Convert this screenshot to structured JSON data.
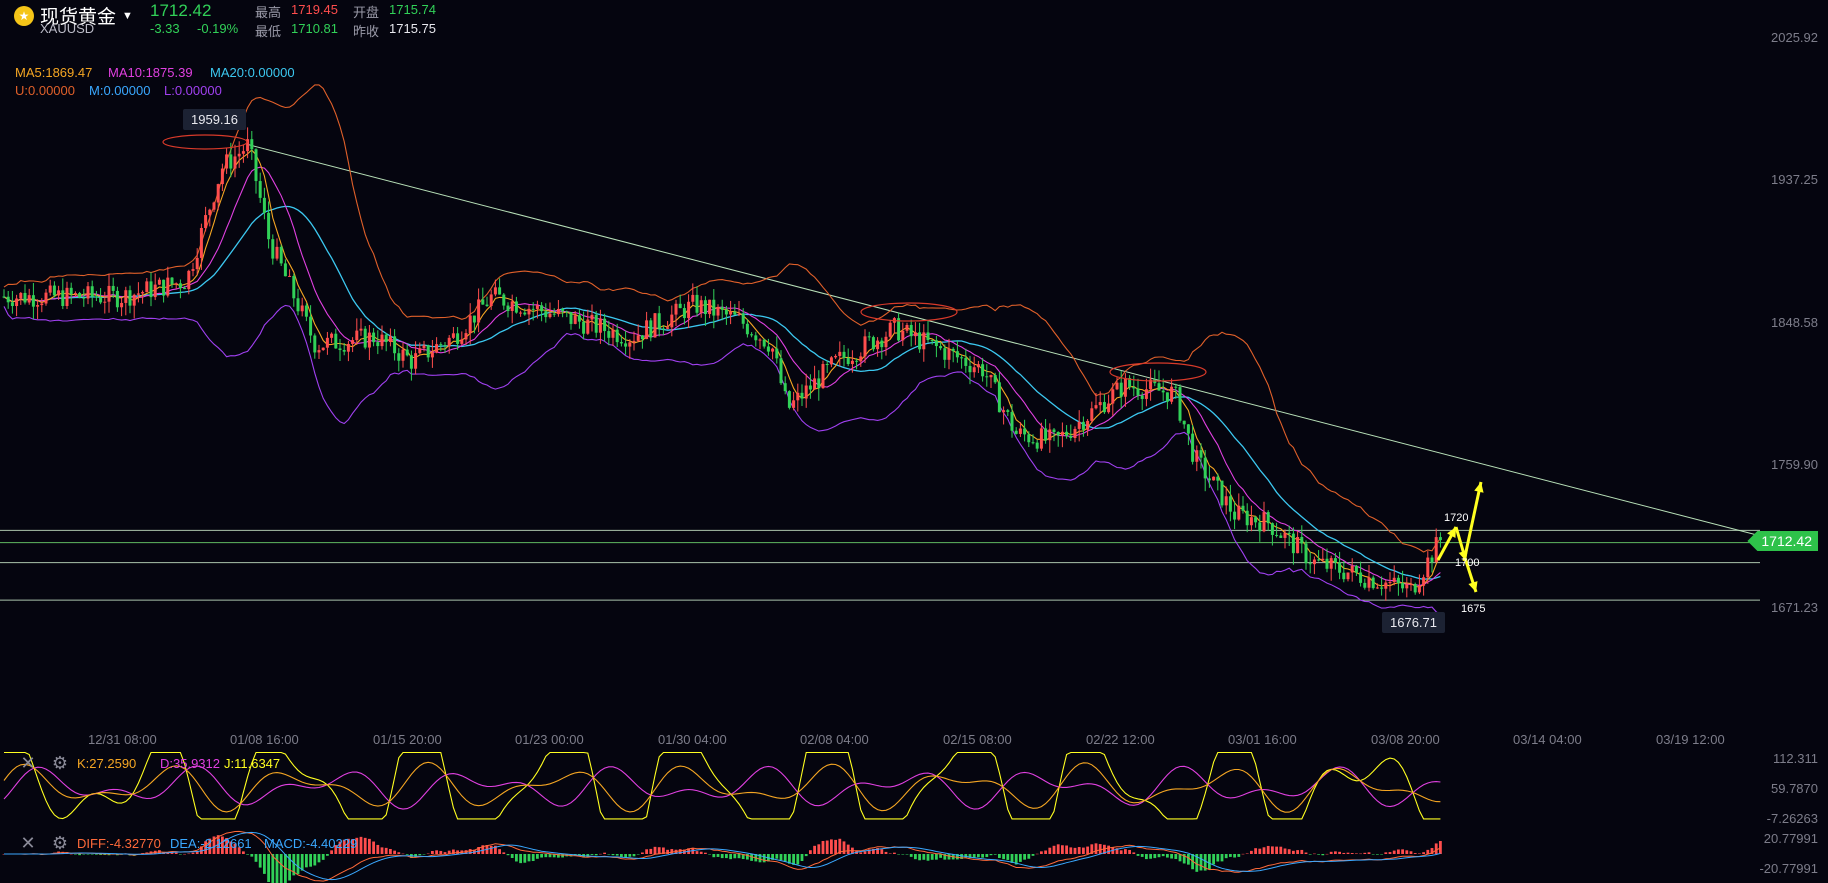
{
  "header": {
    "symbol_name": "现货黄金",
    "symbol_code": "XAUUSD",
    "last_price": "1712.42",
    "change": "-3.33",
    "change_pct": "-0.19%",
    "high_label": "最高",
    "high_value": "1719.45",
    "open_label": "开盘",
    "open_value": "1715.74",
    "low_label": "最低",
    "low_value": "1710.81",
    "prev_label": "昨收",
    "prev_value": "1715.75"
  },
  "indicators": {
    "ma5": "MA5:1869.47",
    "ma10": "MA10:1875.39",
    "ma20": "MA20:0.00000",
    "u": "U:0.00000",
    "m": "M:0.00000",
    "l": "L:0.00000"
  },
  "price_axis": {
    "ticks": [
      "2025.92",
      "1937.25",
      "1848.58",
      "1759.90",
      "1671.23"
    ],
    "current_tag": "1712.42"
  },
  "annotations": {
    "high_tag": "1959.16",
    "low_tag": "1676.71",
    "level_1720": "1720",
    "level_1700": "1700",
    "level_1675": "1675"
  },
  "time_axis": [
    "12/31 08:00",
    "01/08 16:00",
    "01/15 20:00",
    "01/23 00:00",
    "01/30 04:00",
    "02/08 04:00",
    "02/15 08:00",
    "02/22 12:00",
    "03/01 16:00",
    "03/08 20:00",
    "03/14 04:00",
    "03/19 12:00"
  ],
  "kdj": {
    "k": "K:27.2590",
    "d": "D:35.9312",
    "j": "J:11.6347",
    "ticks": [
      "112.311",
      "59.7870",
      "-7.26263"
    ]
  },
  "macd": {
    "diff": "DIFF:-4.32770",
    "dea": "DEA:-2.12661",
    "macd": "MACD:-4.40229",
    "ticks": [
      "20.77991",
      "-20.77991"
    ]
  },
  "colors": {
    "up": "#ff4d4d",
    "down": "#31d158",
    "ma5": "#f5a623",
    "ma10": "#e040e0",
    "ma20": "#3cc8f0",
    "boll_u": "#e0602a",
    "boll_m": "#3aa8ff",
    "boll_l": "#a040f0",
    "arrow": "#ffff20",
    "trendline": "#b8e0b8"
  },
  "chart_data": {
    "type": "candlestick",
    "title": "现货黄金 XAUUSD",
    "ylim": [
      1671.23,
      2025.92
    ],
    "x_categories": [
      "12/31 08:00",
      "01/08 16:00",
      "01/15 20:00",
      "01/23 00:00",
      "01/30 04:00",
      "02/08 04:00",
      "02/15 08:00",
      "02/22 12:00",
      "03/01 16:00",
      "03/08 20:00",
      "03/14 04:00",
      "03/19 12:00"
    ],
    "close_trend": [
      [
        "12/31 08:00",
        1865
      ],
      [
        "01/04 00:00",
        1875
      ],
      [
        "01/06 00:00",
        1945
      ],
      [
        "01/07 12:00",
        1959
      ],
      [
        "01/08 16:00",
        1900
      ],
      [
        "01/11 00:00",
        1835
      ],
      [
        "01/14 00:00",
        1840
      ],
      [
        "01/15 20:00",
        1825
      ],
      [
        "01/18 00:00",
        1840
      ],
      [
        "01/20 00:00",
        1865
      ],
      [
        "01/23 00:00",
        1855
      ],
      [
        "01/27 00:00",
        1840
      ],
      [
        "01/30 04:00",
        1860
      ],
      [
        "02/02 00:00",
        1850
      ],
      [
        "02/04 00:00",
        1835
      ],
      [
        "02/05 00:00",
        1795
      ],
      [
        "02/08 04:00",
        1825
      ],
      [
        "02/11 00:00",
        1845
      ],
      [
        "02/15 08:00",
        1820
      ],
      [
        "02/17 00:00",
        1780
      ],
      [
        "02/19 00:00",
        1775
      ],
      [
        "02/22 12:00",
        1810
      ],
      [
        "02/25 00:00",
        1805
      ],
      [
        "02/26 00:00",
        1765
      ],
      [
        "02/28 00:00",
        1730
      ],
      [
        "03/01 16:00",
        1725
      ],
      [
        "03/04 00:00",
        1700
      ],
      [
        "03/08 20:00",
        1683
      ],
      [
        "03/10 00:00",
        1715
      ]
    ],
    "horizontal_levels": [
      1720,
      1712.42,
      1700,
      1676.71
    ],
    "trendline": [
      [
        "01/07 12:00",
        1959.16
      ],
      [
        "03/19 12:00",
        1715
      ]
    ]
  }
}
